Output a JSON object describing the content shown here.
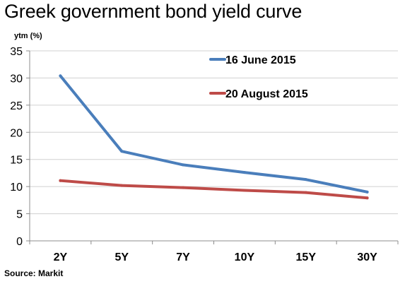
{
  "chart_data": {
    "type": "line",
    "title": "Greek government bond yield curve",
    "ylabel": "ytm (%)",
    "xlabel": "",
    "categories": [
      "2Y",
      "5Y",
      "7Y",
      "10Y",
      "15Y",
      "30Y"
    ],
    "ylim": [
      0,
      35
    ],
    "yticks": [
      0,
      5,
      10,
      15,
      20,
      25,
      30,
      35
    ],
    "grid": true,
    "legend_position": "top-right",
    "series": [
      {
        "name": "16 June 2015",
        "color": "#4a7ebb",
        "values": [
          30.4,
          16.5,
          14.0,
          12.6,
          11.3,
          9.0
        ]
      },
      {
        "name": "20 August 2015",
        "color": "#be4b48",
        "values": [
          11.1,
          10.2,
          9.8,
          9.3,
          8.9,
          7.9
        ]
      }
    ],
    "source": "Source: Markit"
  }
}
